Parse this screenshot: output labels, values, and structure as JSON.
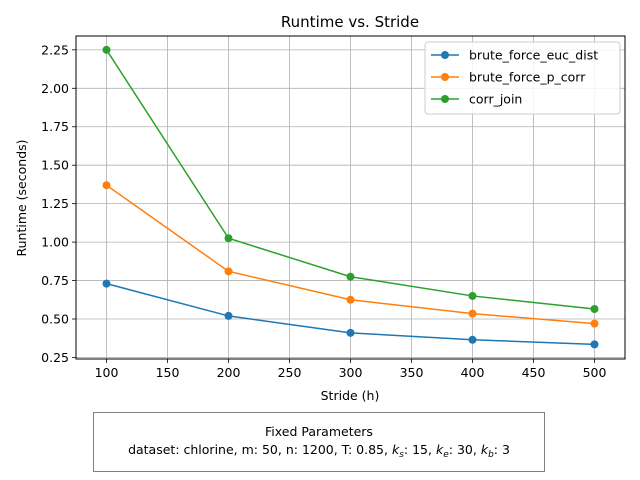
{
  "chart_data": {
    "type": "line",
    "title": "Runtime vs. Stride",
    "xlabel": "Stride (h)",
    "ylabel": "Runtime (seconds)",
    "x": [
      100,
      200,
      300,
      400,
      500
    ],
    "xlim": [
      75,
      525
    ],
    "ylim": [
      0.24,
      2.34
    ],
    "xticks": [
      100,
      150,
      200,
      250,
      300,
      350,
      400,
      450,
      500
    ],
    "xtick_labels": [
      "100",
      "150",
      "200",
      "250",
      "300",
      "350",
      "400",
      "450",
      "500"
    ],
    "yticks": [
      0.25,
      0.5,
      0.75,
      1.0,
      1.25,
      1.5,
      1.75,
      2.0,
      2.25
    ],
    "ytick_labels": [
      "0.25",
      "0.50",
      "0.75",
      "1.00",
      "1.25",
      "1.50",
      "1.75",
      "2.00",
      "2.25"
    ],
    "grid": true,
    "legend_position": "top-right",
    "series": [
      {
        "name": "brute_force_euc_dist",
        "color": "#1f77b4",
        "marker": "circle",
        "values": [
          0.73,
          0.52,
          0.41,
          0.365,
          0.335
        ]
      },
      {
        "name": "brute_force_p_corr",
        "color": "#ff7f0e",
        "marker": "circle",
        "values": [
          1.37,
          0.81,
          0.625,
          0.535,
          0.47
        ]
      },
      {
        "name": "corr_join",
        "color": "#2ca02c",
        "marker": "circle",
        "values": [
          2.25,
          1.025,
          0.775,
          0.65,
          0.565
        ]
      }
    ]
  },
  "fixed_parameters": {
    "heading": "Fixed Parameters",
    "dataset_label": "dataset: ",
    "dataset": "chlorine",
    "m_label": "m: ",
    "m": "50",
    "n_label": "n: ",
    "n": "1200",
    "T_label": "T: ",
    "T": "0.85",
    "k_symbol": "k",
    "ks_sub": "s",
    "ks": "15",
    "ke_sub": "e",
    "ke": "30",
    "kb_sub": "b",
    "kb": "3"
  }
}
